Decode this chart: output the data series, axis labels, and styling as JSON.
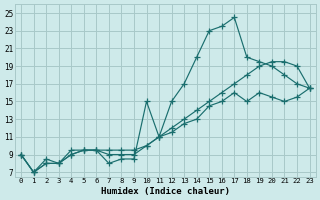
{
  "xlabel": "Humidex (Indice chaleur)",
  "xlim": [
    -0.5,
    23.5
  ],
  "ylim": [
    6.5,
    26
  ],
  "xticks": [
    0,
    1,
    2,
    3,
    4,
    5,
    6,
    7,
    8,
    9,
    10,
    11,
    12,
    13,
    14,
    15,
    16,
    17,
    18,
    19,
    20,
    21,
    22,
    23
  ],
  "yticks": [
    7,
    9,
    11,
    13,
    15,
    17,
    19,
    21,
    23,
    25
  ],
  "bg_color": "#ceeaea",
  "grid_color": "#a8c8c8",
  "line_color": "#1a6e6e",
  "line1_x": [
    0,
    1,
    2,
    3,
    4,
    5,
    6,
    7,
    8,
    9,
    10,
    11,
    12,
    13,
    14,
    15,
    16,
    17,
    18,
    19,
    20,
    21,
    22,
    23
  ],
  "line1_y": [
    9,
    7,
    8.5,
    8,
    9,
    9.5,
    9.5,
    8,
    8.5,
    8.5,
    15,
    11,
    15,
    17,
    20,
    23,
    23.5,
    24.5,
    20,
    19.5,
    19,
    18,
    17,
    16.5
  ],
  "line2_x": [
    0,
    1,
    2,
    3,
    4,
    5,
    6,
    7,
    8,
    9,
    10,
    11,
    12,
    13,
    14,
    15,
    16,
    17,
    18,
    19,
    20,
    21,
    22,
    23
  ],
  "line2_y": [
    9,
    7,
    8,
    8,
    9.5,
    9.5,
    9.5,
    9.5,
    9.5,
    9.5,
    10,
    11,
    12,
    13,
    14,
    15,
    16,
    17,
    18,
    19,
    19.5,
    19.5,
    19,
    16.5
  ],
  "line3_x": [
    0,
    1,
    2,
    3,
    4,
    5,
    6,
    7,
    8,
    9,
    10,
    11,
    12,
    13,
    14,
    15,
    16,
    17,
    18,
    19,
    20,
    21,
    22,
    23
  ],
  "line3_y": [
    9,
    7,
    8,
    8,
    9,
    9.5,
    9.5,
    9,
    9,
    9,
    10,
    11,
    11.5,
    12.5,
    13,
    14.5,
    15,
    16,
    15,
    16,
    15.5,
    15,
    15.5,
    16.5
  ]
}
